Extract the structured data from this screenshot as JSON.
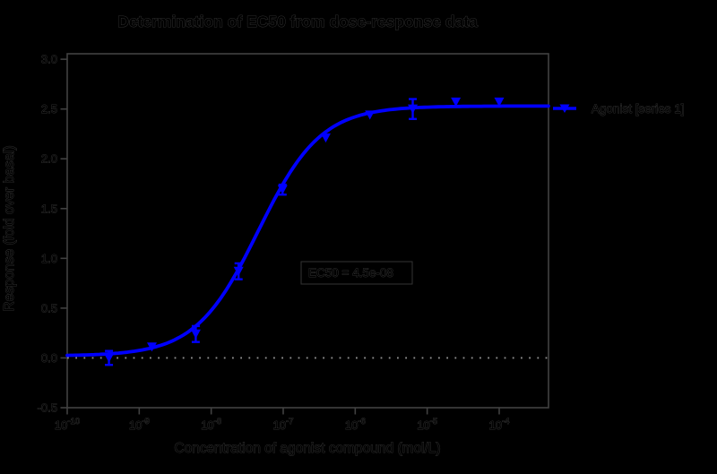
{
  "page": {
    "background": "#000000"
  },
  "chart_data": {
    "type": "line",
    "title": "Determination of EC50 from dose-response data",
    "xlabel": "Concentration of agonist compound (mol/L)",
    "ylabel": "Response (fold over basal)",
    "x_axis": {
      "scale": "log",
      "min": 1e-10,
      "max": 0.000484,
      "ticks": [
        1e-10,
        1e-09,
        1e-08,
        1e-07,
        1e-06,
        1e-05,
        0.0001
      ],
      "tick_exponents": [
        -10,
        -9,
        -8,
        -7,
        -6,
        -5,
        -4
      ],
      "tick_mantissa": "10"
    },
    "y_axis": {
      "min": -0.5,
      "max": 3.055,
      "ticks": [
        -0.5,
        0.0,
        0.5,
        1.0,
        1.5,
        2.0,
        2.5,
        3.0
      ]
    },
    "grid": false,
    "baseline": {
      "y": 0,
      "style": "dotted",
      "color": "#8f8f8f"
    },
    "series": [
      {
        "name": "Agonist [series 1]",
        "color": "#0000ff",
        "marker": "triangle-down",
        "x": [
          3.8e-10,
          1.5e-09,
          6.1e-09,
          2.4e-08,
          9.8e-08,
          3.9e-07,
          1.6e-06,
          6.3e-06,
          2.5e-05,
          0.0001
        ],
        "y": [
          0.0,
          0.11,
          0.24,
          0.87,
          1.69,
          2.21,
          2.44,
          2.5,
          2.57,
          2.57
        ],
        "yerr": [
          0.07,
          0.02,
          0.08,
          0.08,
          0.05,
          0.02,
          0.02,
          0.1,
          0.02,
          0.02
        ]
      }
    ],
    "fit": {
      "model": "4PL",
      "bottom": 0.02,
      "top": 2.53,
      "ec50": 4.5e-08,
      "hill": 1.0
    },
    "annotation": {
      "text": "EC50 = 4.5e-08"
    },
    "legend": {
      "position": "outside-right-top",
      "entries": [
        "Agonist [series 1]"
      ]
    },
    "colors": {
      "curve": "#0000ff",
      "frame": "#414141",
      "text": "#000000",
      "text_halo": "#ffffff",
      "baseline_dots": "#8f8f8f"
    }
  }
}
